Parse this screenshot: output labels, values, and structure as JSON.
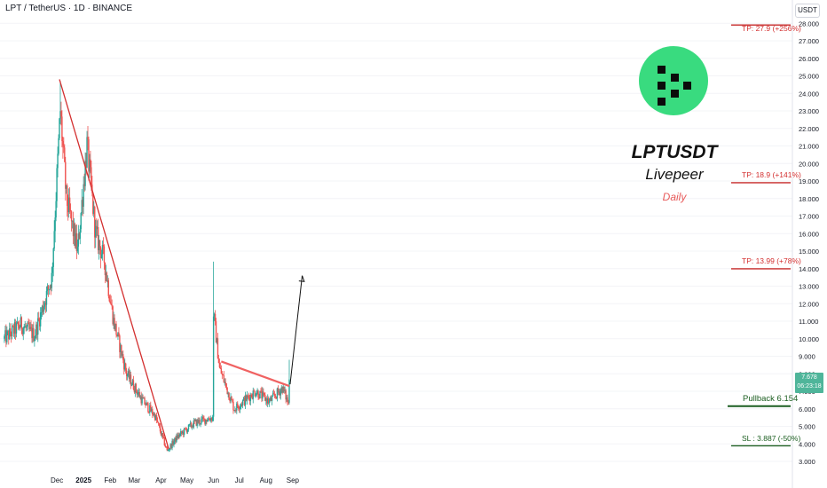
{
  "header": {
    "symbol_line": "LPT / TetherUS · 1D · BINANCE",
    "currency": "USDT"
  },
  "title_block": {
    "ticker": "LPTUSDT",
    "name": "Livepeer",
    "timeframe": "Daily"
  },
  "levels": {
    "tp3": "TP: 27.9 (+256%)",
    "tp2": "TP: 18.9 (+141%)",
    "tp1": "TP: 13.99 (+78%)",
    "pullback": "Pullback 6.154",
    "sl": "SL : 3.887 (-50%)"
  },
  "price_tag": {
    "price": "7.678",
    "countdown": "06:23:18"
  },
  "colors": {
    "up": "#26a69a",
    "down": "#ef5350",
    "trendline": "#d32f2f",
    "resistance": "#f06262",
    "target": "#c62828",
    "support": "#1b5e20",
    "logo": "#39db7f"
  },
  "icons": [
    "livepeer-logo-icon"
  ],
  "chart_data": {
    "type": "candlestick",
    "y_scale": "linear",
    "ylim": [
      2.6,
      28.6
    ],
    "y_ticks": [
      "3.000",
      "4.000",
      "5.000",
      "6.000",
      "7.000",
      "8.000",
      "9.000",
      "10.000",
      "11.000",
      "12.000",
      "13.000",
      "14.000",
      "15.000",
      "16.000",
      "17.000",
      "18.000",
      "19.000",
      "20.000",
      "21.000",
      "22.000",
      "23.000",
      "24.000",
      "25.000",
      "26.000",
      "27.000",
      "28.000"
    ],
    "x_ticks": [
      "Dec",
      "2025",
      "Feb",
      "Mar",
      "Apr",
      "May",
      "Jun",
      "Jul",
      "Aug",
      "Sep"
    ],
    "price_anchors": [
      {
        "date": "2024-10-01",
        "close": 10.0
      },
      {
        "date": "2024-10-20",
        "close": 10.8
      },
      {
        "date": "2024-11-05",
        "close": 10.2
      },
      {
        "date": "2024-11-25",
        "close": 13.5
      },
      {
        "date": "2024-12-05",
        "close": 23.0
      },
      {
        "date": "2024-12-12",
        "close": 18.0
      },
      {
        "date": "2024-12-25",
        "close": 15.0
      },
      {
        "date": "2025-01-05",
        "close": 21.0
      },
      {
        "date": "2025-01-15",
        "close": 16.0
      },
      {
        "date": "2025-01-25",
        "close": 14.5
      },
      {
        "date": "2025-02-05",
        "close": 11.0
      },
      {
        "date": "2025-02-20",
        "close": 8.0
      },
      {
        "date": "2025-03-10",
        "close": 6.5
      },
      {
        "date": "2025-03-25",
        "close": 5.6
      },
      {
        "date": "2025-04-08",
        "close": 3.6
      },
      {
        "date": "2025-04-20",
        "close": 4.4
      },
      {
        "date": "2025-05-10",
        "close": 5.2
      },
      {
        "date": "2025-05-31",
        "close": 5.5
      },
      {
        "date": "2025-06-01",
        "close": 11.5
      },
      {
        "date": "2025-06-08",
        "close": 8.3
      },
      {
        "date": "2025-06-25",
        "close": 6.0
      },
      {
        "date": "2025-07-20",
        "close": 7.0
      },
      {
        "date": "2025-08-05",
        "close": 6.4
      },
      {
        "date": "2025-08-20",
        "close": 7.2
      },
      {
        "date": "2025-08-27",
        "close": 6.3
      },
      {
        "date": "2025-08-28",
        "close": 7.678
      }
    ],
    "trendlines": [
      {
        "name": "downtrend",
        "from": {
          "date": "2024-12-04",
          "price": 24.8
        },
        "to": {
          "date": "2025-04-10",
          "price": 3.7
        }
      },
      {
        "name": "resistance",
        "from": {
          "date": "2025-06-10",
          "price": 8.7
        },
        "to": {
          "date": "2025-08-28",
          "price": 7.3
        }
      },
      {
        "name": "projection",
        "from": {
          "date": "2025-08-29",
          "price": 7.4
        },
        "to": {
          "date": "2025-09-12",
          "price": 13.6
        }
      }
    ],
    "horizontal_levels": [
      {
        "label": "TP: 27.9 (+256%)",
        "price": 27.9
      },
      {
        "label": "TP: 18.9 (+141%)",
        "price": 18.9
      },
      {
        "label": "TP: 13.99 (+78%)",
        "price": 13.99
      },
      {
        "label": "Pullback 6.154",
        "price": 6.154
      },
      {
        "label": "SL : 3.887 (-50%)",
        "price": 3.887
      }
    ],
    "last_price": 7.678
  }
}
